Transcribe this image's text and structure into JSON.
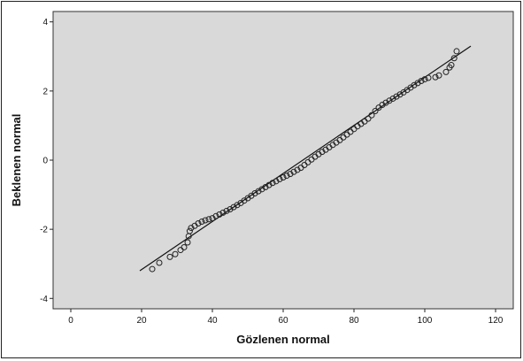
{
  "chart_data": {
    "type": "scatter",
    "xlabel": "Gözlenen normal",
    "ylabel": "Beklenen normal",
    "xlim": [
      -5,
      125
    ],
    "ylim": [
      -4.3,
      4.3
    ],
    "xticks": [
      0,
      20,
      40,
      60,
      80,
      100,
      120
    ],
    "yticks": [
      -4,
      -2,
      0,
      2,
      4
    ],
    "grid": false,
    "colors": {
      "plot_background": "#d9d9d9",
      "points": "#222222",
      "line": "#111111"
    },
    "reference_line": {
      "x": [
        19.5,
        113
      ],
      "y": [
        -3.2,
        3.3
      ]
    },
    "points": [
      [
        23,
        -3.15
      ],
      [
        25,
        -2.97
      ],
      [
        28,
        -2.8
      ],
      [
        29.5,
        -2.72
      ],
      [
        31,
        -2.6
      ],
      [
        32,
        -2.52
      ],
      [
        33,
        -2.38
      ],
      [
        33.3,
        -2.2
      ],
      [
        33.6,
        -2.05
      ],
      [
        34,
        -1.96
      ],
      [
        35,
        -1.9
      ],
      [
        36,
        -1.83
      ],
      [
        37,
        -1.78
      ],
      [
        38,
        -1.74
      ],
      [
        39,
        -1.71
      ],
      [
        40,
        -1.68
      ],
      [
        41,
        -1.62
      ],
      [
        42,
        -1.57
      ],
      [
        43,
        -1.52
      ],
      [
        44,
        -1.47
      ],
      [
        45,
        -1.42
      ],
      [
        46,
        -1.36
      ],
      [
        47,
        -1.3
      ],
      [
        48,
        -1.24
      ],
      [
        49,
        -1.17
      ],
      [
        50,
        -1.1
      ],
      [
        51,
        -1.03
      ],
      [
        52,
        -0.96
      ],
      [
        53,
        -0.9
      ],
      [
        54,
        -0.84
      ],
      [
        55,
        -0.78
      ],
      [
        56,
        -0.72
      ],
      [
        57,
        -0.66
      ],
      [
        58,
        -0.61
      ],
      [
        59,
        -0.55
      ],
      [
        60,
        -0.5
      ],
      [
        61,
        -0.45
      ],
      [
        62,
        -0.4
      ],
      [
        63,
        -0.34
      ],
      [
        64,
        -0.28
      ],
      [
        65,
        -0.22
      ],
      [
        66,
        -0.14
      ],
      [
        67,
        -0.06
      ],
      [
        68,
        0.02
      ],
      [
        69,
        0.1
      ],
      [
        70,
        0.17
      ],
      [
        71,
        0.24
      ],
      [
        72,
        0.3
      ],
      [
        73,
        0.37
      ],
      [
        74,
        0.44
      ],
      [
        75,
        0.51
      ],
      [
        76,
        0.58
      ],
      [
        77,
        0.66
      ],
      [
        78,
        0.74
      ],
      [
        79,
        0.82
      ],
      [
        80,
        0.9
      ],
      [
        81,
        0.98
      ],
      [
        82,
        1.05
      ],
      [
        83,
        1.12
      ],
      [
        84,
        1.2
      ],
      [
        85,
        1.3
      ],
      [
        86,
        1.42
      ],
      [
        87,
        1.52
      ],
      [
        88,
        1.6
      ],
      [
        89,
        1.66
      ],
      [
        90,
        1.72
      ],
      [
        91,
        1.78
      ],
      [
        92,
        1.84
      ],
      [
        93,
        1.9
      ],
      [
        94,
        1.96
      ],
      [
        95,
        2.03
      ],
      [
        96,
        2.1
      ],
      [
        97,
        2.17
      ],
      [
        98,
        2.23
      ],
      [
        99,
        2.29
      ],
      [
        100,
        2.34
      ],
      [
        101,
        2.38
      ],
      [
        103,
        2.4
      ],
      [
        104,
        2.45
      ],
      [
        106,
        2.55
      ],
      [
        107,
        2.68
      ],
      [
        107.5,
        2.75
      ],
      [
        108.3,
        2.95
      ],
      [
        109,
        3.15
      ]
    ]
  }
}
